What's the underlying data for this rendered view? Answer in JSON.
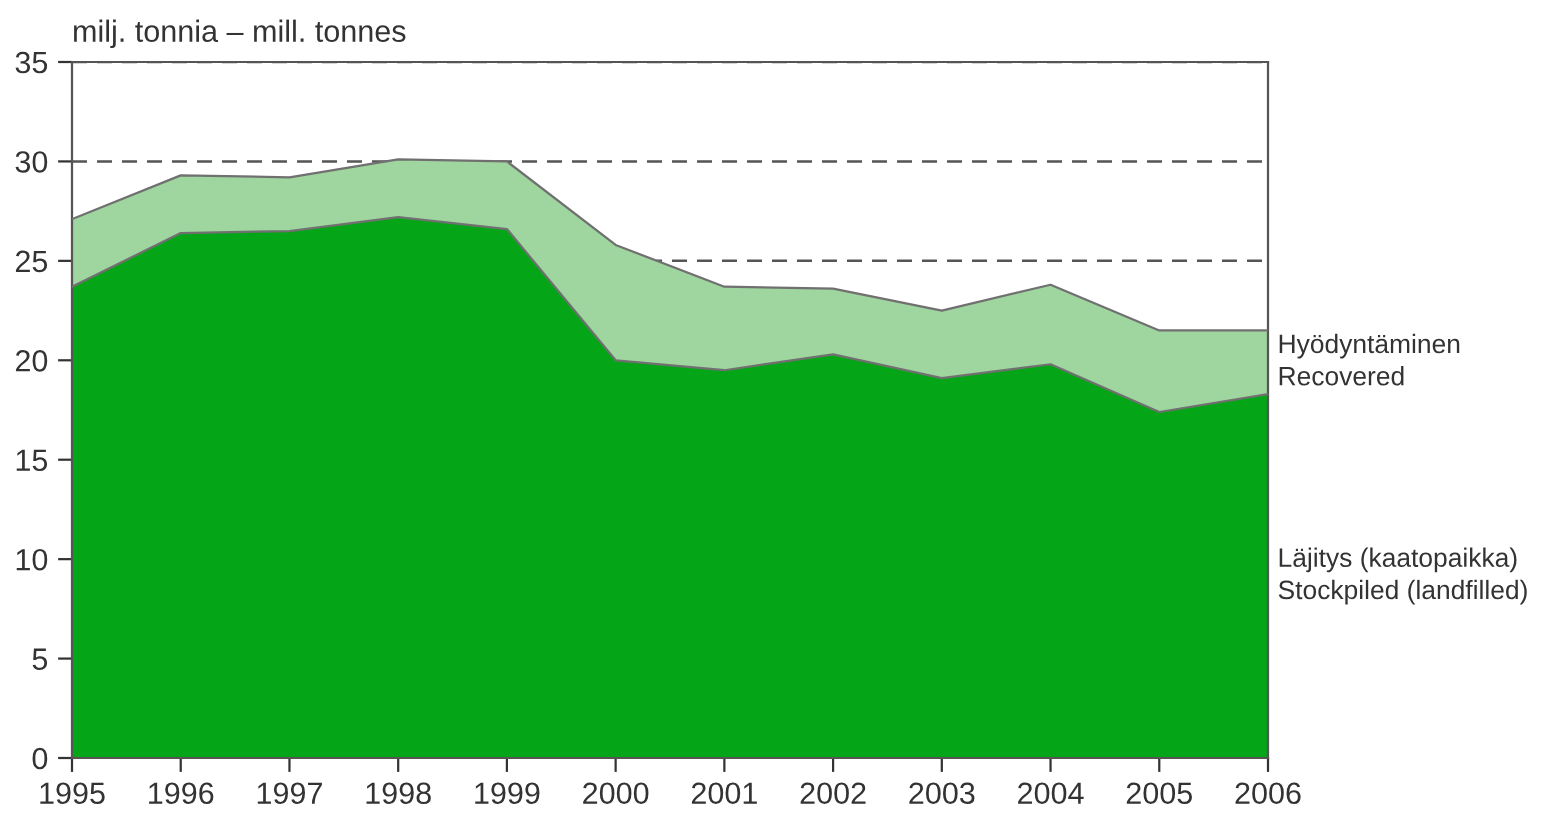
{
  "chart_data": {
    "type": "area",
    "stacked": true,
    "ylabel": "milj. tonnia – mill. tonnes",
    "x": [
      1995,
      1996,
      1997,
      1998,
      1999,
      2000,
      2001,
      2002,
      2003,
      2004,
      2005,
      2006
    ],
    "series": [
      {
        "name": "Läjitys (kaatopaikka)\nStockpiled (landfilled)",
        "color": "#05a518",
        "values": [
          23.7,
          26.4,
          26.5,
          27.2,
          26.6,
          20.0,
          19.5,
          20.3,
          19.1,
          19.8,
          17.4,
          18.3
        ]
      },
      {
        "name": "Hyödyntäminen\nRecovered",
        "color": "#9fd59f",
        "values": [
          3.4,
          2.9,
          2.7,
          2.9,
          3.4,
          5.8,
          4.2,
          3.3,
          3.4,
          4.0,
          4.1,
          3.2
        ]
      }
    ],
    "xlim": [
      1995,
      2006
    ],
    "xticks": [
      1995,
      1996,
      1997,
      1998,
      1999,
      2000,
      2001,
      2002,
      2003,
      2004,
      2005,
      2006
    ],
    "ylim": [
      0,
      35
    ],
    "yticks": [
      0,
      5,
      10,
      15,
      20,
      25,
      30,
      35
    ],
    "grid": "y",
    "line_style": "dashed",
    "legend": false
  }
}
